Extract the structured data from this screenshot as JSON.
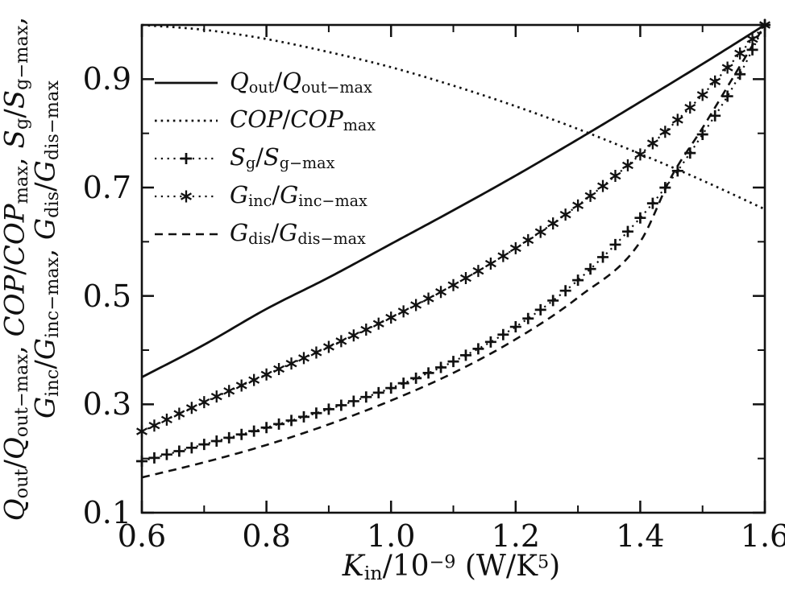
{
  "figure": {
    "background": "#ffffff",
    "ink_color": "#111111",
    "title": ""
  },
  "chart_data": {
    "type": "line",
    "title": "",
    "xlabel": "K_in/10^-9 (W/K^5)",
    "xlabel_segments": [
      [
        "i",
        "K"
      ],
      [
        "sub",
        "in"
      ],
      [
        "n",
        "/10"
      ],
      [
        "sup",
        "−9"
      ],
      [
        "n",
        " (W/K"
      ],
      [
        "sup",
        "5"
      ],
      [
        "n",
        ")"
      ]
    ],
    "ylabel": "Q_out/Q_out-max, COP/COP_max, S_g/S_g-max, G_inc/G_inc-max, G_dis/G_dis-max",
    "ylabel_lines": [
      {
        "segments": [
          [
            "i",
            "Q"
          ],
          [
            "sub",
            "out"
          ],
          [
            "n",
            "/"
          ],
          [
            "i",
            "Q"
          ],
          [
            "sub",
            "out−max"
          ],
          [
            "n",
            ", "
          ],
          [
            "i",
            "COP"
          ],
          [
            "n",
            "/"
          ],
          [
            "i",
            "COP"
          ],
          [
            "sub",
            "max"
          ],
          [
            "n",
            ", "
          ],
          [
            "i",
            "S"
          ],
          [
            "sub",
            "g"
          ],
          [
            "n",
            "/"
          ],
          [
            "i",
            "S"
          ],
          [
            "sub",
            "g−max"
          ],
          [
            "n",
            ","
          ]
        ]
      },
      {
        "segments": [
          [
            "i",
            "G"
          ],
          [
            "sub",
            "inc"
          ],
          [
            "n",
            "/"
          ],
          [
            "i",
            "G"
          ],
          [
            "sub",
            "inc−max"
          ],
          [
            "n",
            ", "
          ],
          [
            "i",
            "G"
          ],
          [
            "sub",
            "dis"
          ],
          [
            "n",
            "/"
          ],
          [
            "i",
            "G"
          ],
          [
            "sub",
            "dis−max"
          ]
        ]
      }
    ],
    "xlim": [
      0.6,
      1.6
    ],
    "ylim": [
      0.1,
      1.0
    ],
    "grid": false,
    "legend_position": "top-left",
    "x_major_ticks": [
      0.6,
      0.8,
      1.0,
      1.2,
      1.4,
      1.6
    ],
    "x_major_tick_labels": [
      "0.6",
      "0.8",
      "1.0",
      "1.2",
      "1.4",
      "1.6"
    ],
    "x_minor_ticks": [
      0.7,
      0.9,
      1.1,
      1.3,
      1.5
    ],
    "y_major_ticks": [
      0.1,
      0.3,
      0.5,
      0.7,
      0.9
    ],
    "y_major_tick_labels": [
      "0.1",
      "0.3",
      "0.5",
      "0.7",
      "0.9"
    ],
    "y_minor_ticks": [
      0.2,
      0.4,
      0.6,
      0.8,
      1.0
    ],
    "series": [
      {
        "id": "qout",
        "name": "Q_out/Q_out-max",
        "legend_segments": [
          [
            "i",
            "Q"
          ],
          [
            "sub",
            "out"
          ],
          [
            "n",
            "/"
          ],
          [
            "i",
            "Q"
          ],
          [
            "sub",
            "out−max"
          ]
        ],
        "line_style": "solid",
        "marker": null,
        "points": [
          [
            0.6,
            0.35
          ],
          [
            0.7,
            0.41
          ],
          [
            0.8,
            0.476
          ],
          [
            0.9,
            0.534
          ],
          [
            1.0,
            0.596
          ],
          [
            1.1,
            0.658
          ],
          [
            1.2,
            0.722
          ],
          [
            1.3,
            0.789
          ],
          [
            1.4,
            0.858
          ],
          [
            1.5,
            0.928
          ],
          [
            1.6,
            1.0
          ]
        ]
      },
      {
        "id": "cop",
        "name": "COP/COP-max",
        "legend_segments": [
          [
            "i",
            "COP"
          ],
          [
            "n",
            "/"
          ],
          [
            "i",
            "COP"
          ],
          [
            "sub",
            "max"
          ]
        ],
        "line_style": "dotted",
        "marker": null,
        "points": [
          [
            0.6,
            1.0
          ],
          [
            0.7,
            0.991
          ],
          [
            0.8,
            0.974
          ],
          [
            0.9,
            0.95
          ],
          [
            1.0,
            0.922
          ],
          [
            1.1,
            0.888
          ],
          [
            1.2,
            0.85
          ],
          [
            1.3,
            0.808
          ],
          [
            1.4,
            0.762
          ],
          [
            1.5,
            0.713
          ],
          [
            1.6,
            0.66
          ]
        ]
      },
      {
        "id": "sg",
        "name": "S_g/S_g-max",
        "legend_segments": [
          [
            "i",
            "S"
          ],
          [
            "sub",
            "g"
          ],
          [
            "n",
            "/"
          ],
          [
            "i",
            "S"
          ],
          [
            "sub",
            "g−max"
          ]
        ],
        "line_style": "dotted-connector",
        "marker": "plus",
        "marker_step": 0.02,
        "points": [
          [
            0.6,
            0.195
          ],
          [
            0.7,
            0.226
          ],
          [
            0.8,
            0.257
          ],
          [
            0.9,
            0.291
          ],
          [
            1.0,
            0.33
          ],
          [
            1.1,
            0.379
          ],
          [
            1.2,
            0.443
          ],
          [
            1.3,
            0.529
          ],
          [
            1.4,
            0.644
          ],
          [
            1.45,
            0.715
          ],
          [
            1.5,
            0.798
          ],
          [
            1.55,
            0.888
          ],
          [
            1.6,
            1.0
          ]
        ]
      },
      {
        "id": "ginc",
        "name": "G_inc/G_inc-max",
        "legend_segments": [
          [
            "i",
            "G"
          ],
          [
            "sub",
            "inc"
          ],
          [
            "n",
            "/"
          ],
          [
            "i",
            "G"
          ],
          [
            "sub",
            "inc−max"
          ]
        ],
        "line_style": "dotted-connector",
        "marker": "asterisk",
        "marker_step": 0.02,
        "points": [
          [
            0.6,
            0.25
          ],
          [
            0.7,
            0.304
          ],
          [
            0.8,
            0.355
          ],
          [
            0.9,
            0.406
          ],
          [
            1.0,
            0.46
          ],
          [
            1.1,
            0.52
          ],
          [
            1.2,
            0.588
          ],
          [
            1.3,
            0.667
          ],
          [
            1.4,
            0.761
          ],
          [
            1.5,
            0.871
          ],
          [
            1.6,
            1.0
          ]
        ]
      },
      {
        "id": "gdis",
        "name": "G_dis/G_dis-max",
        "legend_segments": [
          [
            "i",
            "G"
          ],
          [
            "sub",
            "dis"
          ],
          [
            "n",
            "/"
          ],
          [
            "i",
            "G"
          ],
          [
            "sub",
            "dis−max"
          ]
        ],
        "line_style": "dashed",
        "marker": null,
        "points": [
          [
            0.6,
            0.165
          ],
          [
            0.7,
            0.193
          ],
          [
            0.8,
            0.225
          ],
          [
            0.9,
            0.263
          ],
          [
            1.0,
            0.307
          ],
          [
            1.1,
            0.358
          ],
          [
            1.2,
            0.42
          ],
          [
            1.3,
            0.497
          ],
          [
            1.4,
            0.6
          ],
          [
            1.45,
            0.72
          ],
          [
            1.5,
            0.81
          ],
          [
            1.55,
            0.905
          ],
          [
            1.6,
            1.0
          ]
        ]
      }
    ]
  }
}
